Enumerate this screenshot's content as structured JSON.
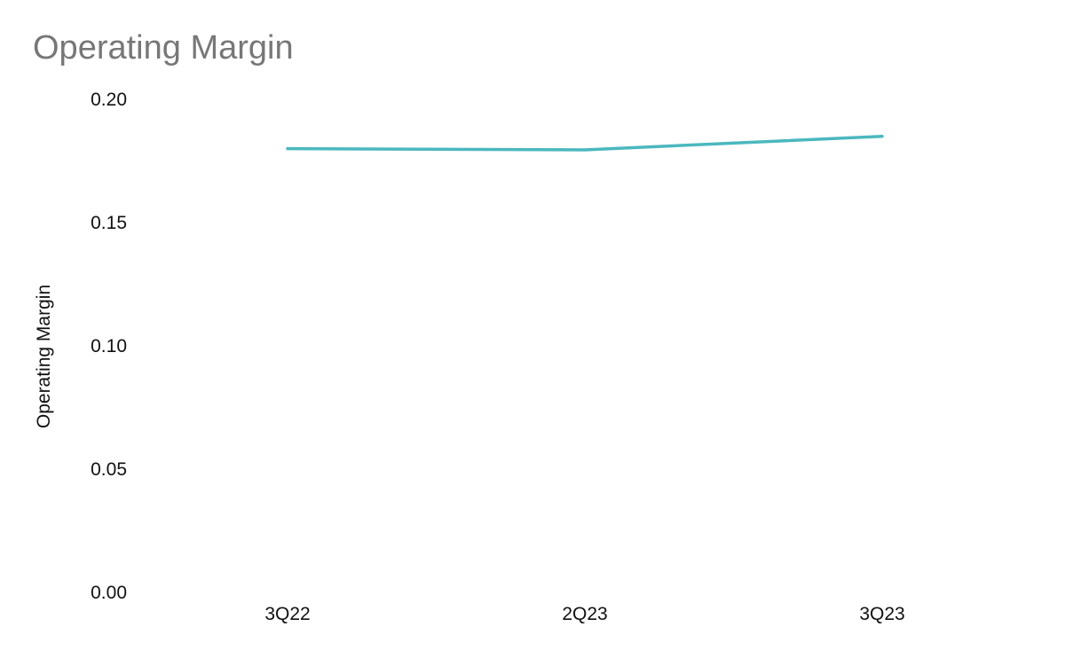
{
  "chart_data": {
    "type": "line",
    "title": "Operating Margin",
    "ylabel": "Operating Margin",
    "xlabel": "",
    "categories": [
      "3Q22",
      "2Q23",
      "3Q23"
    ],
    "series": [
      {
        "values": [
          0.18,
          0.1795,
          0.185
        ],
        "color": "#4bb8be"
      }
    ],
    "ylim": [
      0,
      0.2
    ],
    "yticks": [
      "0.00",
      "0.05",
      "0.10",
      "0.15",
      "0.20"
    ],
    "grid": false,
    "legend": "none"
  }
}
